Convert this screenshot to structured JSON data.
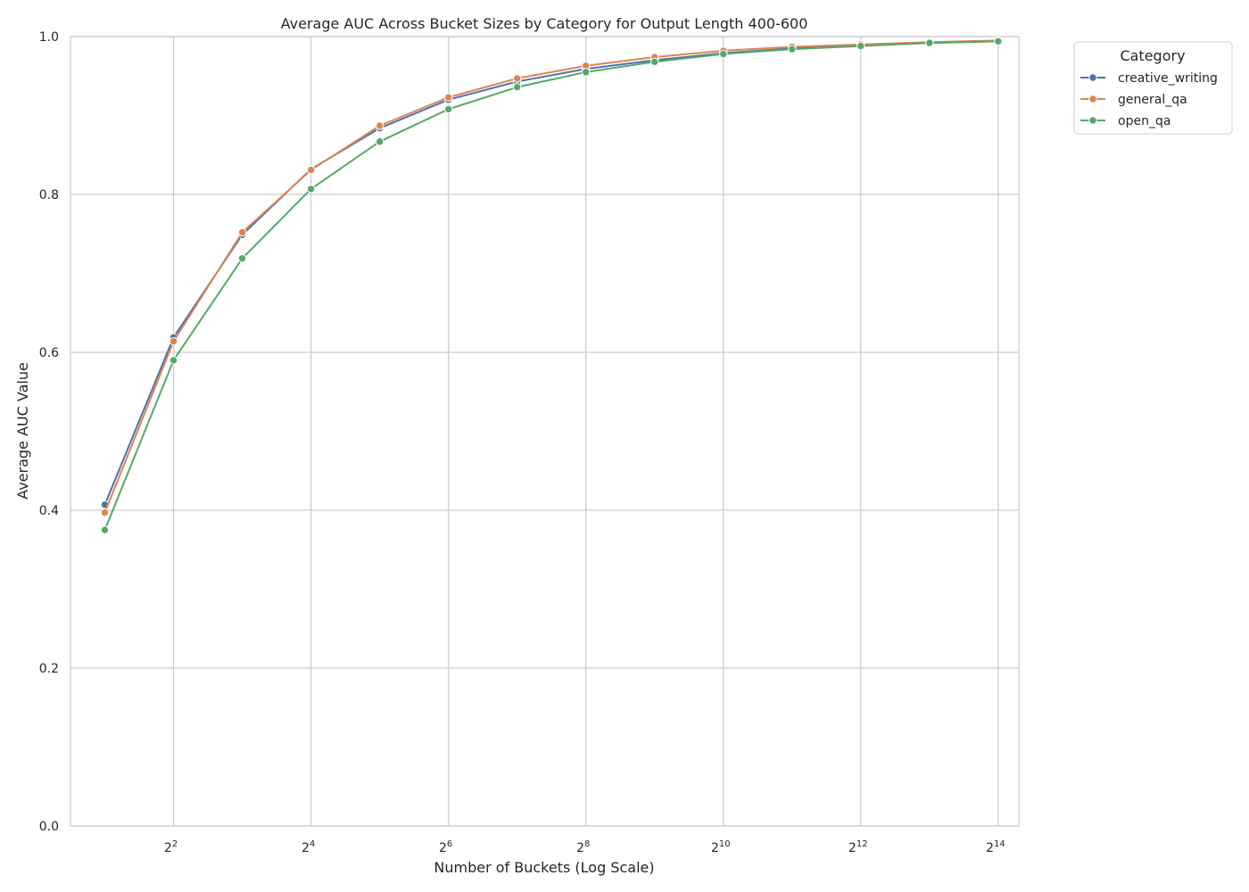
{
  "chart_data": {
    "type": "line",
    "title": "Average AUC Across Bucket Sizes by Category for Output Length 400-600",
    "xlabel": "Number of Buckets (Log Scale)",
    "ylabel": "Average AUC Value",
    "x_scale": "log2",
    "x": [
      2,
      4,
      8,
      16,
      32,
      64,
      128,
      256,
      512,
      1024,
      2048,
      4096,
      8192,
      16384
    ],
    "x_ticks": [
      {
        "value": 4,
        "base": "2",
        "exp": "2"
      },
      {
        "value": 16,
        "base": "2",
        "exp": "4"
      },
      {
        "value": 64,
        "base": "2",
        "exp": "6"
      },
      {
        "value": 256,
        "base": "2",
        "exp": "8"
      },
      {
        "value": 1024,
        "base": "2",
        "exp": "10"
      },
      {
        "value": 4096,
        "base": "2",
        "exp": "12"
      },
      {
        "value": 16384,
        "base": "2",
        "exp": "14"
      }
    ],
    "xlim_log2": [
      0.5,
      14.3
    ],
    "ylim": [
      0.0,
      1.0
    ],
    "y_ticks": [
      {
        "value": 0.0,
        "label": "0.0"
      },
      {
        "value": 0.2,
        "label": "0.2"
      },
      {
        "value": 0.4,
        "label": "0.4"
      },
      {
        "value": 0.6,
        "label": "0.6"
      },
      {
        "value": 0.8,
        "label": "0.8"
      },
      {
        "value": 1.0,
        "label": "1.0"
      }
    ],
    "grid": true,
    "legend": {
      "title": "Category",
      "placement": "outside-top-right"
    },
    "series": [
      {
        "name": "creative_writing",
        "color": "#4c72b0",
        "values": [
          0.407,
          0.619,
          0.749,
          0.832,
          0.884,
          0.92,
          0.943,
          0.959,
          0.97,
          0.979,
          0.985,
          0.989,
          0.992,
          0.994
        ]
      },
      {
        "name": "general_qa",
        "color": "#dd8452",
        "values": [
          0.397,
          0.614,
          0.752,
          0.831,
          0.887,
          0.923,
          0.947,
          0.963,
          0.974,
          0.982,
          0.987,
          0.99,
          0.993,
          0.995
        ]
      },
      {
        "name": "open_qa",
        "color": "#55a868",
        "values": [
          0.375,
          0.59,
          0.719,
          0.807,
          0.867,
          0.908,
          0.936,
          0.955,
          0.968,
          0.978,
          0.984,
          0.988,
          0.992,
          0.994
        ]
      }
    ]
  }
}
